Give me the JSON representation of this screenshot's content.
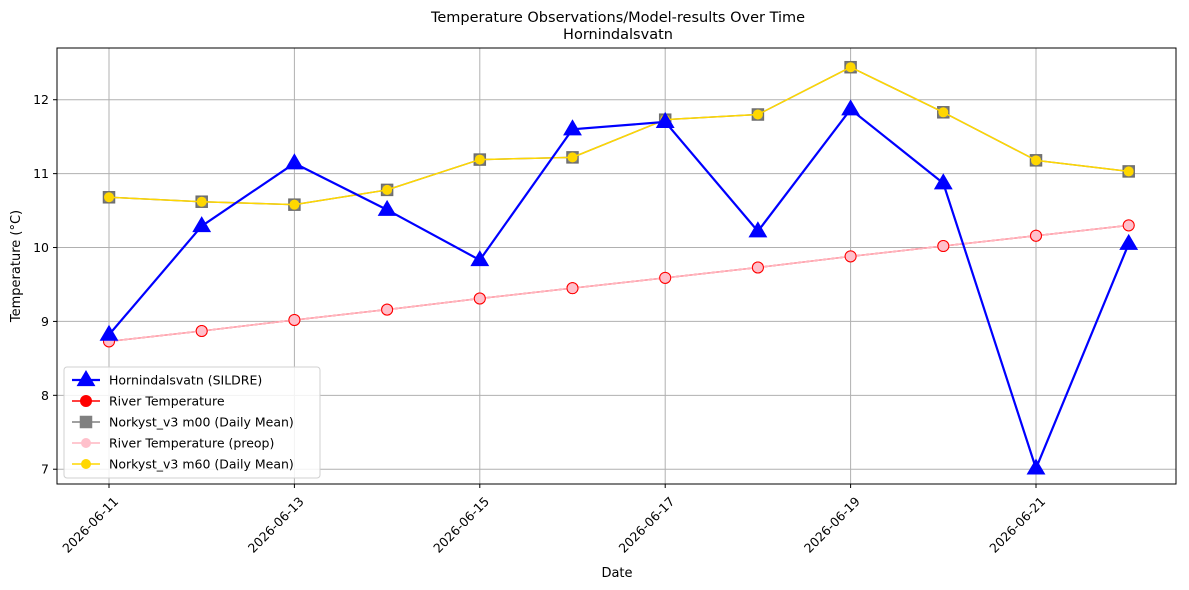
{
  "chart_data": {
    "type": "line",
    "title": "Temperature Observations/Model-results Over Time",
    "subtitle": "Hornindalsvatn",
    "xlabel": "Date",
    "ylabel": "Temperature (°C)",
    "x": [
      "2026-06-11",
      "2026-06-12",
      "2026-06-13",
      "2026-06-14",
      "2026-06-15",
      "2026-06-16",
      "2026-06-17",
      "2026-06-18",
      "2026-06-19",
      "2026-06-20",
      "2026-06-21",
      "2026-06-22"
    ],
    "xticks": [
      "2026-06-11",
      "2026-06-13",
      "2026-06-15",
      "2026-06-17",
      "2026-06-19",
      "2026-06-21"
    ],
    "yticks": [
      7,
      8,
      9,
      10,
      11,
      12
    ],
    "ylim": [
      6.8,
      12.7
    ],
    "grid": true,
    "legend_position": "lower-left",
    "series": [
      {
        "name": "Hornindalsvatn (SILDRE)",
        "color": "#0000ff",
        "marker": "triangle",
        "values": [
          8.82,
          10.29,
          11.14,
          10.51,
          9.83,
          11.6,
          11.7,
          10.22,
          11.87,
          10.87,
          7.01,
          10.05
        ]
      },
      {
        "name": "River Temperature",
        "color": "#ff0000",
        "marker": "circle",
        "values": [
          8.73,
          8.87,
          9.02,
          9.16,
          9.31,
          9.45,
          9.59,
          9.73,
          9.88,
          10.02,
          10.16,
          10.3
        ]
      },
      {
        "name": "Norkyst_v3 m00 (Daily Mean)",
        "color": "#808080",
        "marker": "square",
        "values": [
          10.68,
          10.62,
          10.58,
          10.78,
          11.19,
          11.22,
          11.73,
          11.8,
          12.44,
          11.83,
          11.18,
          11.03
        ]
      },
      {
        "name": "River Temperature (preop)",
        "color": "#ffb6c1",
        "marker": "circle",
        "values": [
          8.73,
          8.87,
          9.02,
          9.16,
          9.31,
          9.45,
          9.59,
          9.73,
          9.88,
          10.02,
          10.16,
          10.3
        ]
      },
      {
        "name": "Norkyst_v3 m60 (Daily Mean)",
        "color": "#ffd700",
        "marker": "circle",
        "values": [
          10.68,
          10.62,
          10.58,
          10.78,
          11.19,
          11.22,
          11.73,
          11.8,
          12.44,
          11.83,
          11.18,
          11.03
        ]
      }
    ]
  }
}
